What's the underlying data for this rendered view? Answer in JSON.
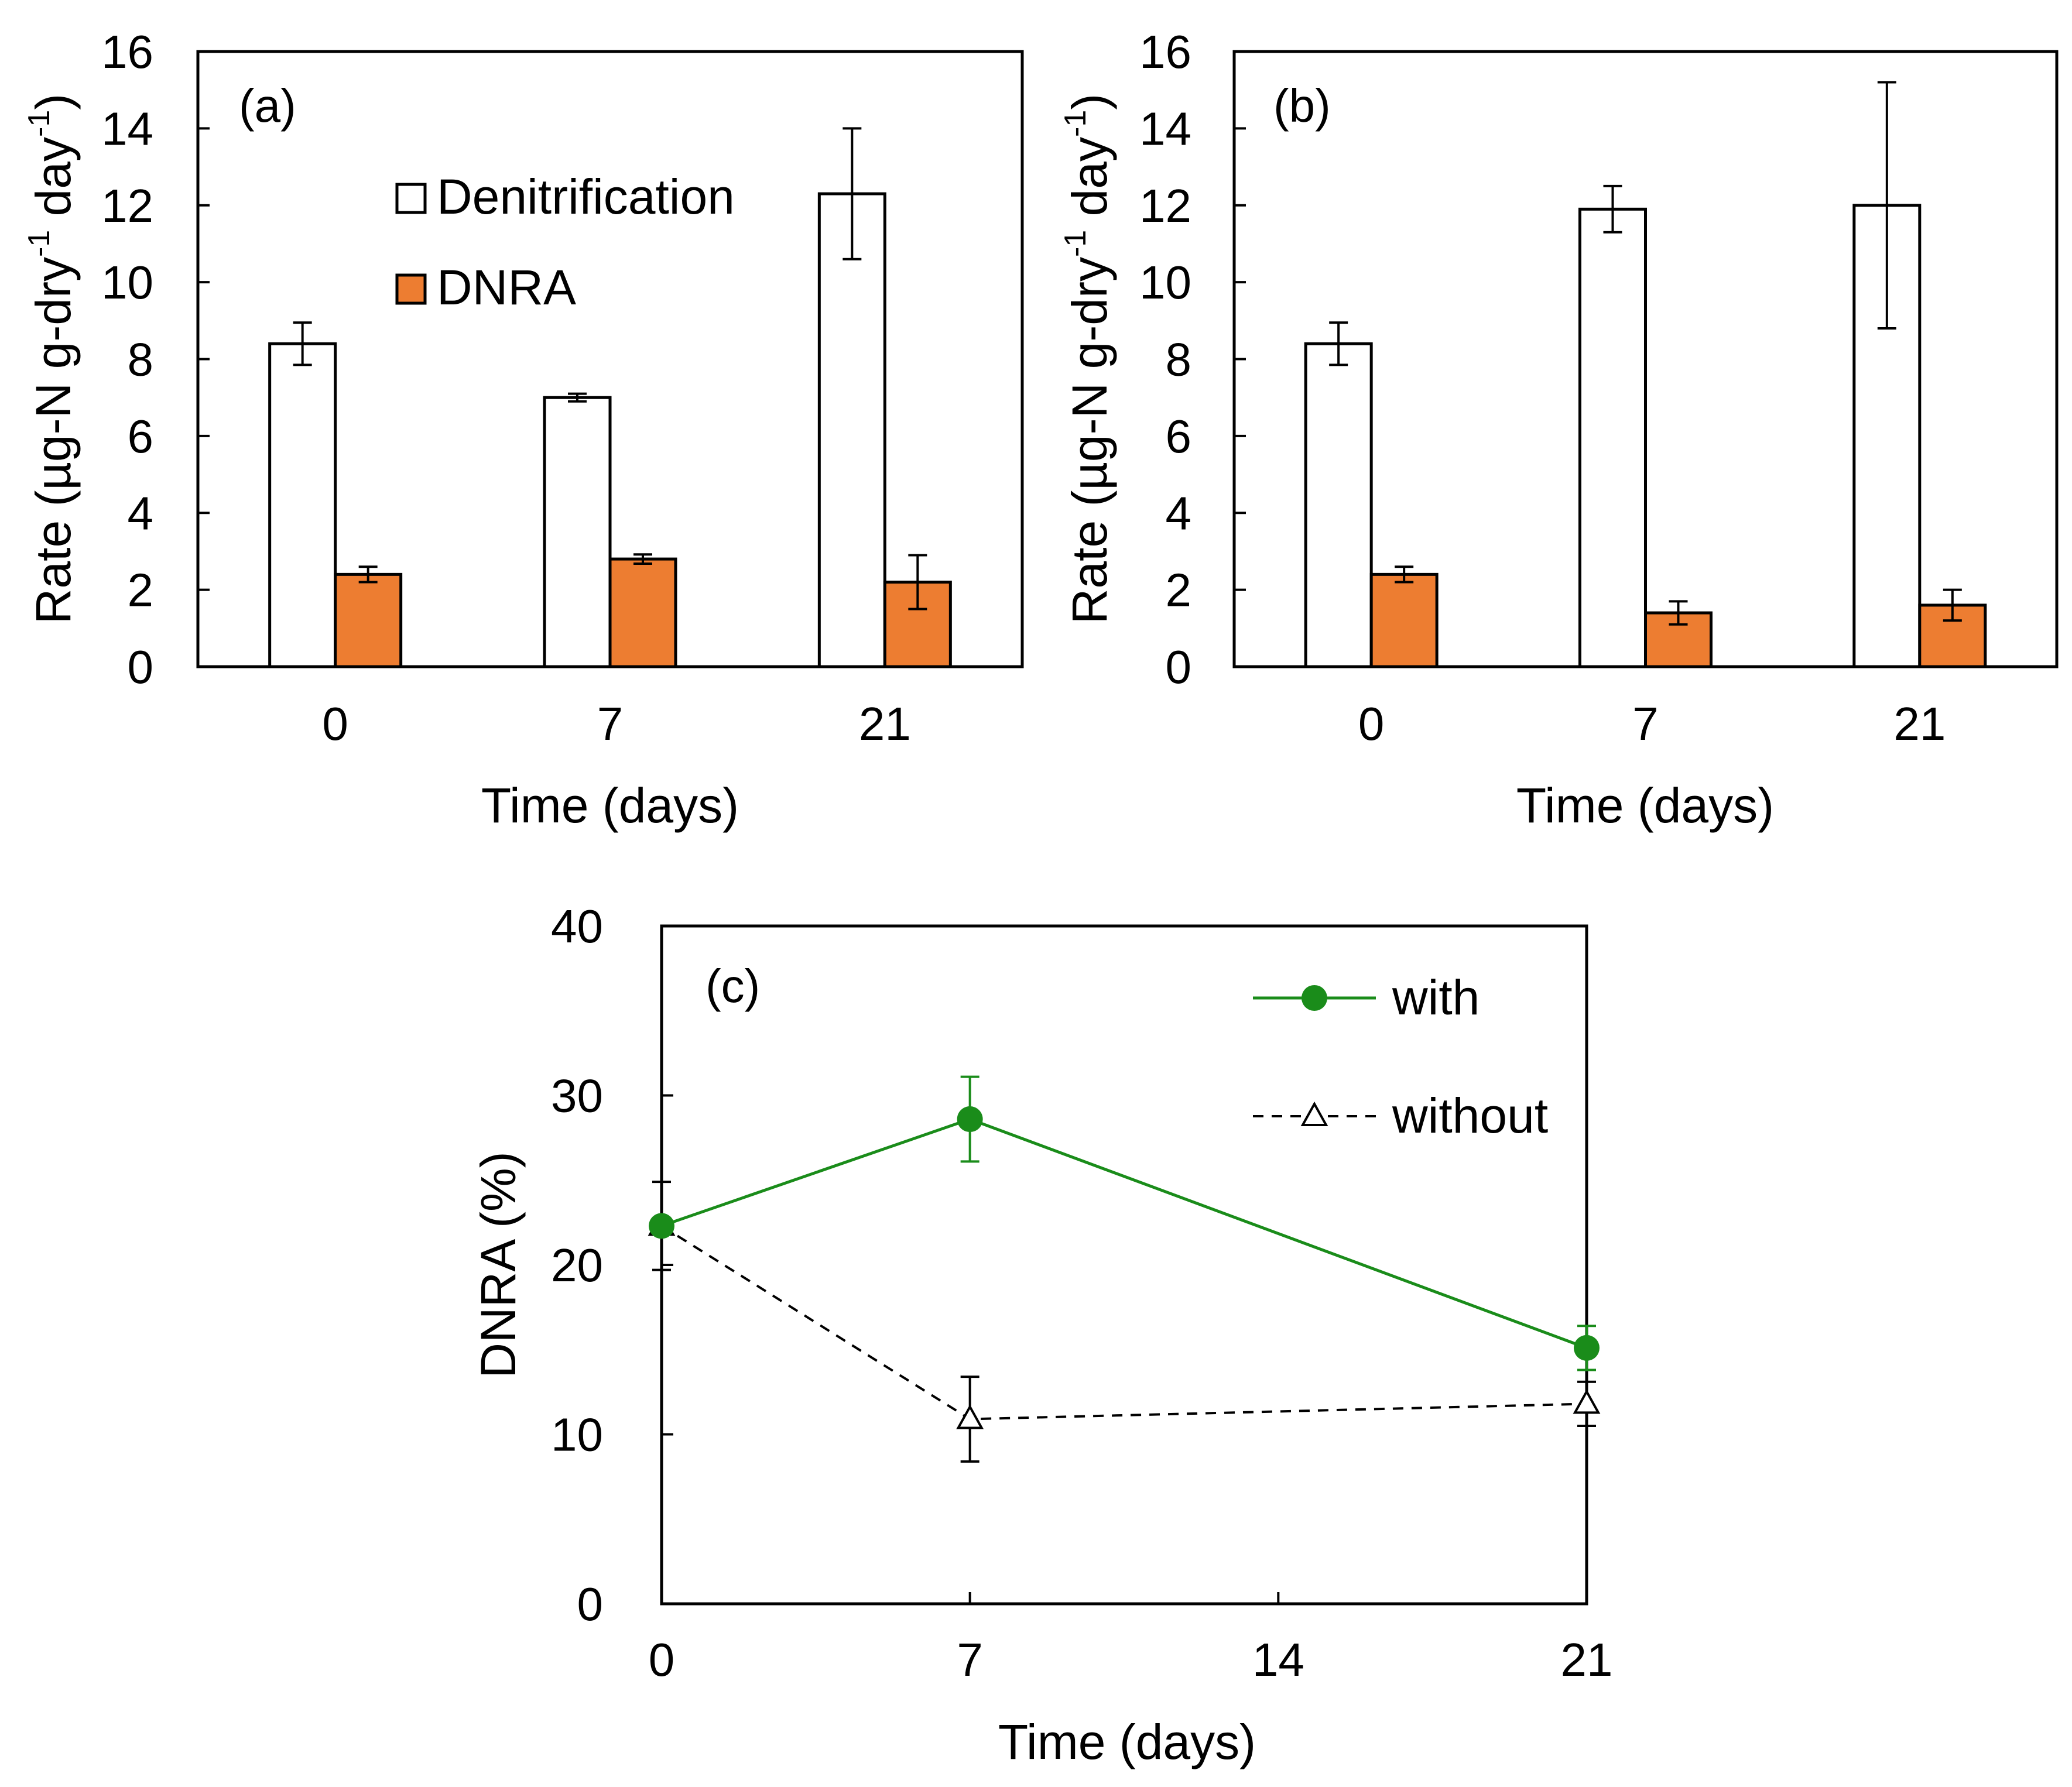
{
  "chart_data": [
    {
      "id": "a",
      "type": "bar",
      "panel_label": "(a)",
      "categories": [
        "0",
        "7",
        "21"
      ],
      "series": [
        {
          "name": "Denitrification",
          "color": "#ffffff",
          "values": [
            8.4,
            7.0,
            12.3
          ],
          "errors": [
            0.55,
            0.1,
            1.7
          ]
        },
        {
          "name": "DNRA",
          "color": "#ed7d31",
          "values": [
            2.4,
            2.8,
            2.2
          ],
          "errors": [
            0.2,
            0.12,
            0.7
          ]
        }
      ],
      "xlabel": "Time (days)",
      "ylabel": "Rate (µg-N g-dry-1 day-1)",
      "ylabel_parts": [
        "Rate (µg-N g-dry",
        "-1",
        " day",
        "-1",
        ")"
      ],
      "ylim": [
        0,
        16
      ],
      "yticks": [
        "0",
        "2",
        "4",
        "6",
        "8",
        "10",
        "12",
        "14",
        "16"
      ],
      "grid": false,
      "legend": "upper-center"
    },
    {
      "id": "b",
      "type": "bar",
      "panel_label": "(b)",
      "categories": [
        "0",
        "7",
        "21"
      ],
      "series": [
        {
          "name": "Denitrification",
          "color": "#ffffff",
          "values": [
            8.4,
            11.9,
            12.0
          ],
          "errors": [
            0.55,
            0.6,
            3.2
          ]
        },
        {
          "name": "DNRA",
          "color": "#ed7d31",
          "values": [
            2.4,
            1.4,
            1.6
          ],
          "errors": [
            0.2,
            0.3,
            0.4
          ]
        }
      ],
      "xlabel": "Time (days)",
      "ylabel": "Rate (µg-N g-dry-1 day-1)",
      "ylabel_parts": [
        "Rate (µg-N g-dry",
        "-1",
        " day",
        "-1",
        ")"
      ],
      "ylim": [
        0,
        16
      ],
      "yticks": [
        "0",
        "2",
        "4",
        "6",
        "8",
        "10",
        "12",
        "14",
        "16"
      ],
      "grid": false
    },
    {
      "id": "c",
      "type": "line",
      "panel_label": "(c)",
      "x": [
        0,
        7,
        21
      ],
      "series": [
        {
          "name": "with",
          "color": "#1a8c1a",
          "marker": "filled-circle",
          "line": "solid",
          "values": [
            22.3,
            28.6,
            15.1
          ],
          "errors": [
            0.4,
            2.5,
            1.3
          ]
        },
        {
          "name": "without",
          "color": "#000000",
          "marker": "open-triangle",
          "line": "dashed",
          "values": [
            22.3,
            10.9,
            11.8
          ],
          "errors": [
            2.6,
            2.5,
            1.3
          ]
        }
      ],
      "xlabel": "Time (days)",
      "ylabel": "DNRA (%)",
      "xlim": [
        0,
        21
      ],
      "ylim": [
        0,
        40
      ],
      "xticks": [
        "0",
        "7",
        "14",
        "21"
      ],
      "yticks": [
        "0",
        "10",
        "20",
        "30",
        "40"
      ],
      "grid": false,
      "legend": "upper-right"
    }
  ]
}
